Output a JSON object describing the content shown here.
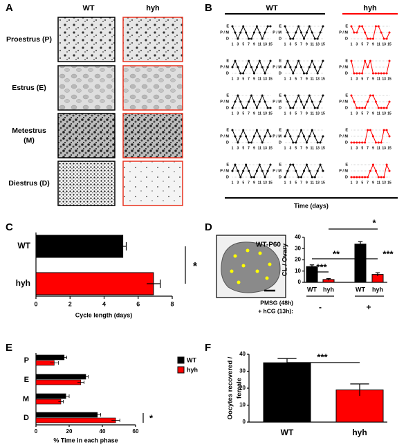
{
  "panel_labels": [
    "A",
    "B",
    "C",
    "D",
    "E",
    "F"
  ],
  "panel_a": {
    "columns": [
      {
        "name": "WT",
        "color": "#000000"
      },
      {
        "name": "hyh",
        "color": "#e8321e"
      }
    ],
    "rows": [
      [
        "Proestrus (P)"
      ],
      [
        "Estrus (E)"
      ],
      [
        "Metestrus",
        "(M)"
      ],
      [
        "Diestrus (D)"
      ]
    ]
  },
  "panel_e_image": {
    "label": "WT-P60"
  },
  "chart_data": [
    {
      "type": "cycle-lines",
      "x": [
        1,
        2,
        3,
        4,
        5,
        6,
        7,
        8,
        9,
        10,
        11,
        12,
        13,
        14,
        15
      ],
      "xlim": [
        1,
        15
      ],
      "xticks": [
        1,
        3,
        5,
        7,
        9,
        11,
        13,
        15
      ],
      "ylim": [
        0,
        2
      ],
      "yticks": [
        {
          "value": 0,
          "label": "D"
        },
        {
          "value": 1,
          "label": "P / M"
        },
        {
          "value": 2,
          "label": "E"
        }
      ],
      "xlabel": "Time (days)",
      "groups": [
        {
          "name": "WT",
          "color": "#000000",
          "mice": [
            [
              2,
              1,
              0,
              1,
              2,
              1,
              0,
              0,
              1,
              2,
              1,
              0,
              1,
              2,
              2
            ],
            [
              2,
              1,
              0,
              0,
              1,
              2,
              1,
              0,
              1,
              2,
              1,
              0,
              0,
              1,
              2
            ],
            [
              1,
              2,
              1,
              0,
              0,
              1,
              2,
              1,
              0,
              1,
              2,
              1,
              0,
              1,
              2
            ],
            [
              1,
              2,
              1,
              0,
              1,
              2,
              1,
              0,
              0,
              1,
              2,
              1,
              0,
              1,
              2
            ],
            [
              0,
              1,
              2,
              1,
              0,
              0,
              1,
              2,
              1,
              0,
              1,
              2,
              1,
              0,
              0
            ],
            [
              2,
              1,
              0,
              0,
              1,
              2,
              1,
              0,
              1,
              2,
              1,
              0,
              0,
              1,
              2
            ],
            [
              2,
              1,
              0,
              1,
              2,
              1,
              0,
              0,
              1,
              2,
              1,
              0,
              1,
              2,
              1
            ],
            [
              1,
              2,
              1,
              0,
              0,
              1,
              2,
              1,
              0,
              1,
              2,
              1,
              0,
              0,
              1
            ],
            [
              1,
              2,
              1,
              0,
              1,
              2,
              1,
              0,
              0,
              1,
              2,
              1,
              0,
              1,
              2
            ],
            [
              0,
              1,
              2,
              2,
              1,
              0,
              0,
              1,
              2,
              1,
              0,
              0,
              1,
              2,
              1
            ]
          ]
        },
        {
          "name": "hyh",
          "color": "#ff0000",
          "mice": [
            [
              2,
              1,
              1,
              2,
              2,
              1,
              0,
              0,
              0,
              2,
              2,
              1,
              0,
              0,
              1
            ],
            [
              2,
              0,
              0,
              0,
              0,
              2,
              1,
              2,
              0,
              0,
              0,
              0,
              0,
              0,
              2
            ],
            [
              2,
              1,
              0,
              0,
              0,
              0,
              1,
              2,
              2,
              1,
              0,
              0,
              0,
              0,
              1
            ],
            [
              0,
              0,
              0,
              0,
              0,
              0,
              2,
              2,
              1,
              0,
              0,
              0,
              2,
              2,
              1
            ],
            [
              0,
              0,
              0,
              0,
              0,
              0,
              0,
              1,
              2,
              1,
              0,
              0,
              0,
              2,
              1
            ]
          ]
        }
      ]
    },
    {
      "type": "hbar",
      "categories": [
        "WT",
        "hyh"
      ],
      "colors": [
        "#000000",
        "#ff0000"
      ],
      "values": [
        5.1,
        6.9
      ],
      "errors": [
        0.2,
        0.4
      ],
      "xlim": [
        0,
        8
      ],
      "xticks": [
        0,
        2,
        4,
        6,
        8
      ],
      "xlabel": "Cycle length (days)",
      "annotations": [
        "*"
      ]
    },
    {
      "type": "grouped-hbar",
      "categories": [
        "P",
        "E",
        "M",
        "D"
      ],
      "series": [
        {
          "name": "WT",
          "color": "#000000",
          "values": [
            17,
            30,
            18,
            37
          ],
          "errors": [
            1.5,
            1.5,
            2,
            2
          ]
        },
        {
          "name": "hyh",
          "color": "#ff0000",
          "values": [
            11,
            27,
            15,
            48
          ],
          "errors": [
            2.5,
            2,
            1.5,
            2.5
          ]
        }
      ],
      "xlim": [
        0,
        60
      ],
      "xticks": [
        0,
        20,
        40,
        60
      ],
      "xlabel": "% Time in each phase",
      "annotations": [
        "*"
      ]
    },
    {
      "type": "bar",
      "categories": [
        "WT",
        "hyh",
        "WT",
        "hyh"
      ],
      "colors": [
        "#000000",
        "#ff0000",
        "#000000",
        "#ff0000"
      ],
      "values": [
        14,
        2.5,
        34,
        7
      ],
      "errors": [
        1.5,
        0.8,
        2.2,
        1.5
      ],
      "ylim": [
        0,
        40
      ],
      "yticks": [
        0,
        10,
        20,
        30,
        40
      ],
      "ylabel": [
        "CL / Ovary"
      ],
      "treatment_labels": [
        "PMSG (48h)",
        "+ hCG (13h):"
      ],
      "treatment_groups": [
        "-",
        "+"
      ],
      "annotations": [
        "***",
        "**",
        "*",
        "***"
      ]
    },
    {
      "type": "bar",
      "categories": [
        "WT",
        "hyh"
      ],
      "colors": [
        "#000000",
        "#ff0000"
      ],
      "values": [
        35,
        19
      ],
      "errors": [
        2.5,
        3.5
      ],
      "ylim": [
        0,
        40
      ],
      "yticks": [
        0,
        10,
        20,
        30,
        40
      ],
      "ylabel": [
        "Oocytes recovered /",
        "female"
      ],
      "annotations": [
        "***"
      ]
    }
  ]
}
